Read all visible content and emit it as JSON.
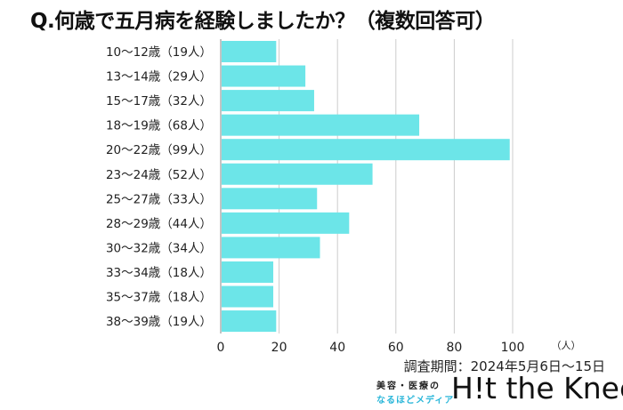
{
  "chart_data": {
    "type": "bar",
    "orientation": "horizontal",
    "title": "Q.何歳で五月病を経験しましたか？（複数回答可）",
    "categories": [
      "10〜12歳（19人）",
      "13〜14歳（29人）",
      "15〜17歳（32人）",
      "18〜19歳（68人）",
      "20〜22歳（99人）",
      "23〜24歳（52人）",
      "25〜27歳（33人）",
      "28〜29歳（44人）",
      "30〜32歳（34人）",
      "33〜34歳（18人）",
      "35〜37歳（18人）",
      "38〜39歳（19人）"
    ],
    "values": [
      19,
      29,
      32,
      68,
      99,
      52,
      33,
      44,
      34,
      18,
      18,
      19
    ],
    "xlim": [
      0,
      100
    ],
    "xticks": [
      "0",
      "20",
      "40",
      "60",
      "80",
      "100"
    ],
    "xunit": "（人）",
    "grid": true,
    "bar_color": "#6ce5e8"
  },
  "footer": {
    "period": "調査期間：2024年5月6日〜15日",
    "logo_line1": "美容・医療の",
    "logo_line2": "なるほどメディア",
    "logo_brand": "H!t the Knee"
  }
}
